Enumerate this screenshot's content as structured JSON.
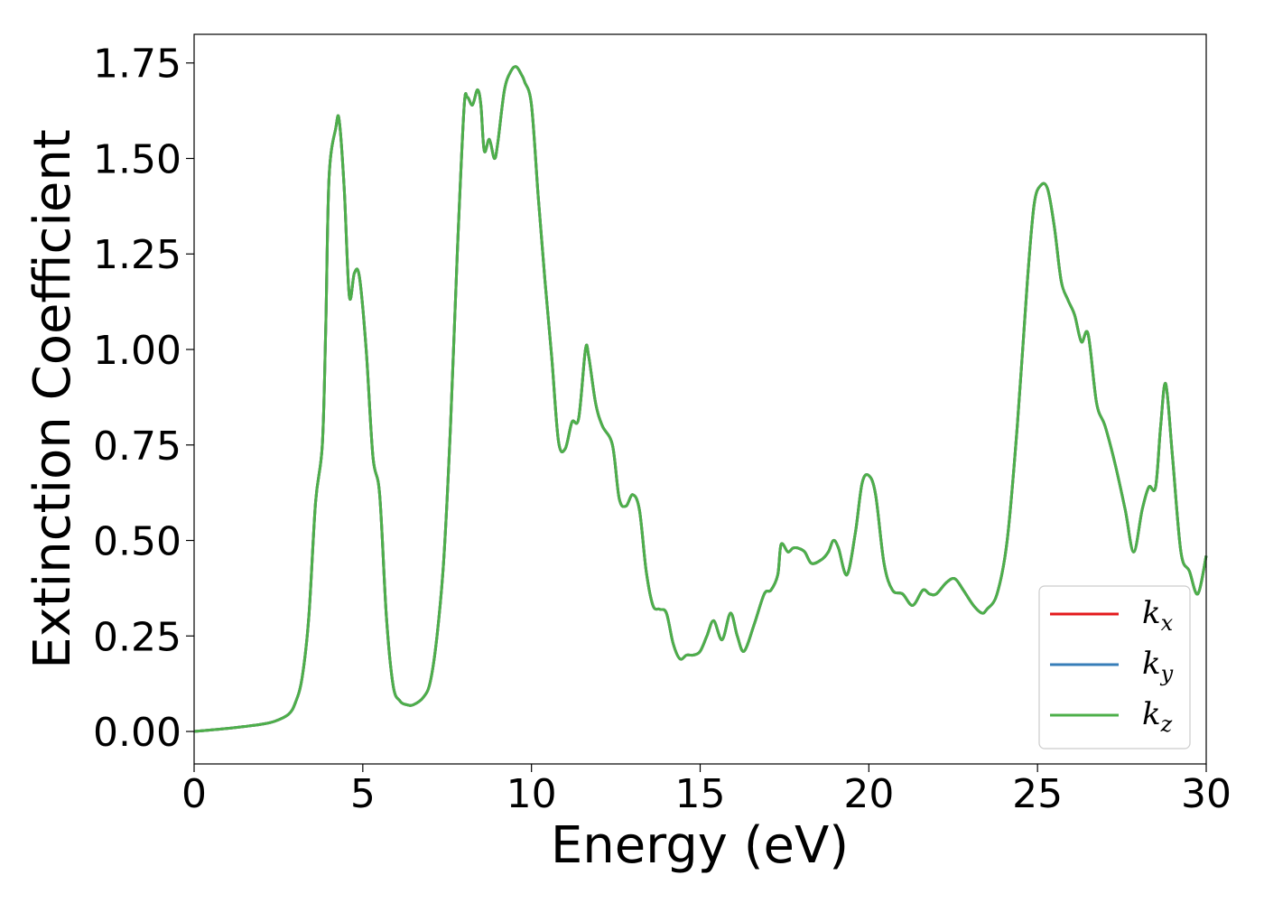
{
  "chart_data": {
    "type": "line",
    "xlabel": "Energy (eV)",
    "ylabel": "Extinction Coefficient",
    "xlim": [
      0,
      30
    ],
    "ylim": [
      -0.085,
      1.825
    ],
    "xticks": [
      0,
      5,
      10,
      15,
      20,
      25,
      30
    ],
    "xtick_labels": [
      "0",
      "5",
      "10",
      "15",
      "20",
      "25",
      "30"
    ],
    "yticks": [
      0,
      0.25,
      0.5,
      0.75,
      1.0,
      1.25,
      1.5,
      1.75
    ],
    "ytick_labels": [
      "0.00",
      "0.25",
      "0.50",
      "0.75",
      "1.00",
      "1.25",
      "1.50",
      "1.75"
    ],
    "grid": false,
    "legend_position": "lower-right",
    "series": [
      {
        "name": "k_x",
        "base": "k",
        "sub": "x",
        "color": "#e41a1c"
      },
      {
        "name": "k_y",
        "base": "k",
        "sub": "y",
        "color": "#377eb8"
      },
      {
        "name": "k_z",
        "base": "k",
        "sub": "z",
        "color": "#4daf4a"
      }
    ],
    "x": [
      0,
      0.5,
      1,
      1.5,
      2,
      2.4,
      2.8,
      3.0,
      3.2,
      3.4,
      3.6,
      3.8,
      3.9,
      4.0,
      4.2,
      4.3,
      4.45,
      4.6,
      4.75,
      4.9,
      5.1,
      5.3,
      5.5,
      5.7,
      5.9,
      6.1,
      6.3,
      6.5,
      6.8,
      7.0,
      7.2,
      7.4,
      7.6,
      7.8,
      8.0,
      8.1,
      8.25,
      8.4,
      8.5,
      8.6,
      8.75,
      8.9,
      9.0,
      9.2,
      9.4,
      9.55,
      9.7,
      9.8,
      10.0,
      10.2,
      10.4,
      10.6,
      10.8,
      11.0,
      11.2,
      11.4,
      11.6,
      11.7,
      11.9,
      12.1,
      12.4,
      12.6,
      12.8,
      13.0,
      13.2,
      13.4,
      13.6,
      13.8,
      14.0,
      14.2,
      14.4,
      14.6,
      14.8,
      15.0,
      15.2,
      15.4,
      15.65,
      15.9,
      16.1,
      16.3,
      16.6,
      16.9,
      17.1,
      17.3,
      17.4,
      17.6,
      17.75,
      17.9,
      18.1,
      18.3,
      18.6,
      18.8,
      18.95,
      19.1,
      19.35,
      19.6,
      19.8,
      20.0,
      20.2,
      20.45,
      20.7,
      21.0,
      21.3,
      21.6,
      21.8,
      22.0,
      22.3,
      22.55,
      22.8,
      23.1,
      23.35,
      23.5,
      23.8,
      24.1,
      24.4,
      24.7,
      24.9,
      25.1,
      25.3,
      25.5,
      25.7,
      25.9,
      26.1,
      26.3,
      26.5,
      26.75,
      27.0,
      27.3,
      27.6,
      27.85,
      28.1,
      28.3,
      28.5,
      28.65,
      28.8,
      29.0,
      29.25,
      29.5,
      29.75,
      30.0
    ],
    "values": [
      0.0,
      0.004,
      0.008,
      0.013,
      0.019,
      0.027,
      0.045,
      0.075,
      0.14,
      0.3,
      0.6,
      0.75,
      1.05,
      1.45,
      1.58,
      1.6,
      1.42,
      1.14,
      1.2,
      1.19,
      1.0,
      0.72,
      0.62,
      0.3,
      0.12,
      0.08,
      0.07,
      0.07,
      0.09,
      0.13,
      0.25,
      0.45,
      0.8,
      1.25,
      1.63,
      1.66,
      1.64,
      1.68,
      1.64,
      1.52,
      1.55,
      1.5,
      1.54,
      1.68,
      1.73,
      1.74,
      1.72,
      1.7,
      1.64,
      1.4,
      1.18,
      0.98,
      0.76,
      0.74,
      0.81,
      0.82,
      1.0,
      0.98,
      0.86,
      0.8,
      0.75,
      0.61,
      0.59,
      0.62,
      0.58,
      0.42,
      0.33,
      0.32,
      0.31,
      0.23,
      0.19,
      0.2,
      0.2,
      0.21,
      0.25,
      0.29,
      0.24,
      0.31,
      0.25,
      0.21,
      0.28,
      0.36,
      0.37,
      0.41,
      0.49,
      0.47,
      0.48,
      0.48,
      0.47,
      0.44,
      0.45,
      0.47,
      0.5,
      0.48,
      0.41,
      0.52,
      0.65,
      0.67,
      0.62,
      0.44,
      0.37,
      0.36,
      0.33,
      0.37,
      0.36,
      0.36,
      0.39,
      0.4,
      0.37,
      0.33,
      0.31,
      0.32,
      0.36,
      0.5,
      0.8,
      1.18,
      1.38,
      1.43,
      1.42,
      1.32,
      1.18,
      1.13,
      1.09,
      1.02,
      1.04,
      0.86,
      0.8,
      0.7,
      0.58,
      0.47,
      0.58,
      0.64,
      0.64,
      0.8,
      0.91,
      0.72,
      0.47,
      0.42,
      0.36,
      0.46
    ]
  }
}
